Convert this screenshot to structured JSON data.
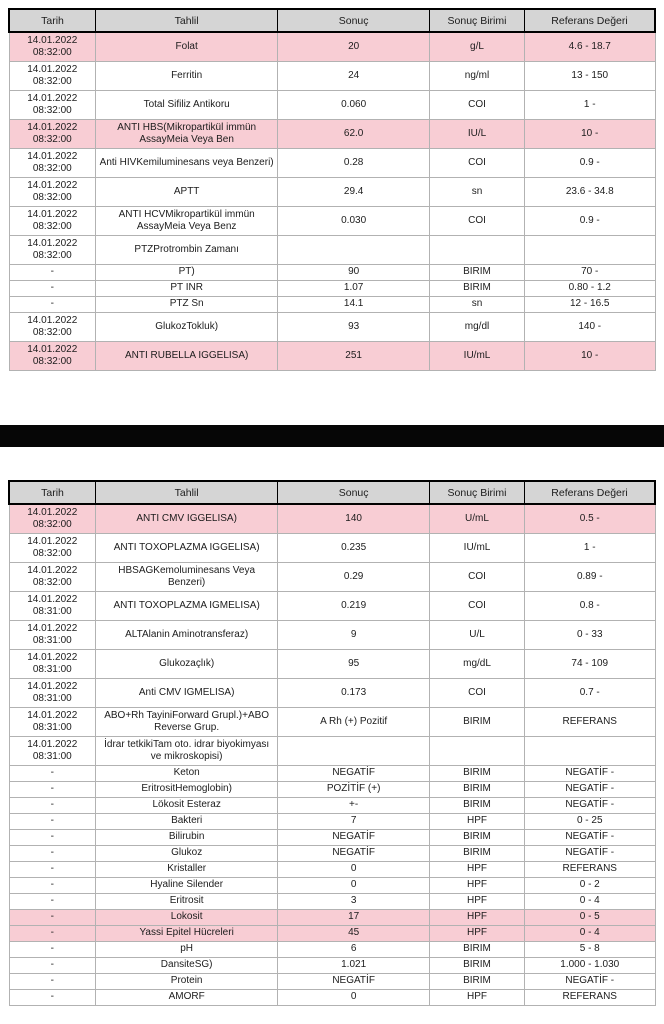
{
  "colors": {
    "highlight_pink": "#f8cdd4",
    "header_gray": "#d5d5d5",
    "redaction_black": "#060606"
  },
  "columns": {
    "date": "Tarih",
    "test": "Tahlil",
    "result": "Sonuç",
    "unit": "Sonuç Birimi",
    "ref": "Referans Değeri"
  },
  "table1": {
    "rows": [
      {
        "date": "14.01.2022",
        "time": "08:32:00",
        "test": "Folat",
        "result": "20",
        "unit": "g/L",
        "ref": "4.6 - 18.7",
        "highlight": true
      },
      {
        "date": "14.01.2022",
        "time": "08:32:00",
        "test": "Ferritin",
        "result": "24",
        "unit": "ng/ml",
        "ref": "13 - 150",
        "highlight": false
      },
      {
        "date": "14.01.2022",
        "time": "08:32:00",
        "test": "Total Sifiliz Antikoru",
        "result": "0.060",
        "unit": "COI",
        "ref": "1 -",
        "highlight": false
      },
      {
        "date": "14.01.2022",
        "time": "08:32:00",
        "test": "ANTI HBS(Mikropartikül immün AssayMeia Veya Ben",
        "result": "62.0",
        "unit": "IU/L",
        "ref": "10 -",
        "highlight": true
      },
      {
        "date": "14.01.2022",
        "time": "08:32:00",
        "test": "Anti HIVKemiluminesans veya Benzeri)",
        "result": "0.28",
        "unit": "COI",
        "ref": "0.9 -",
        "highlight": false
      },
      {
        "date": "14.01.2022",
        "time": "08:32:00",
        "test": "APTT",
        "result": "29.4",
        "unit": "sn",
        "ref": "23.6 - 34.8",
        "highlight": false
      },
      {
        "date": "14.01.2022",
        "time": "08:32:00",
        "test": "ANTI HCVMikropartikül immün AssayMeia Veya Benz",
        "result": "0.030",
        "unit": "COI",
        "ref": "0.9 -",
        "highlight": false
      },
      {
        "date": "14.01.2022",
        "time": "08:32:00",
        "test": "PTZProtrombin Zamanı",
        "result": "",
        "unit": "",
        "ref": "",
        "highlight": false
      },
      {
        "date": "-",
        "time": "",
        "test": "PT)",
        "result": "90",
        "unit": "BIRIM",
        "ref": "70 -",
        "highlight": false
      },
      {
        "date": "-",
        "time": "",
        "test": "PT INR",
        "result": "1.07",
        "unit": "BIRIM",
        "ref": "0.80 - 1.2",
        "highlight": false
      },
      {
        "date": "-",
        "time": "",
        "test": "PTZ Sn",
        "result": "14.1",
        "unit": "sn",
        "ref": "12 - 16.5",
        "highlight": false
      },
      {
        "date": "14.01.2022",
        "time": "08:32:00",
        "test": "GlukozTokluk)",
        "result": "93",
        "unit": "mg/dl",
        "ref": "140 -",
        "highlight": false
      },
      {
        "date": "14.01.2022",
        "time": "08:32:00",
        "test": "ANTI RUBELLA IGGELISA)",
        "result": "251",
        "unit": "IU/mL",
        "ref": "10 -",
        "highlight": true
      }
    ]
  },
  "table2": {
    "rows": [
      {
        "date": "14.01.2022",
        "time": "08:32:00",
        "test": "ANTI CMV IGGELISA)",
        "result": "140",
        "unit": "U/mL",
        "ref": "0.5 -",
        "highlight": true
      },
      {
        "date": "14.01.2022",
        "time": "08:32:00",
        "test": "ANTI TOXOPLAZMA IGGELISA)",
        "result": "0.235",
        "unit": "IU/mL",
        "ref": "1 -",
        "highlight": false
      },
      {
        "date": "14.01.2022",
        "time": "08:32:00",
        "test": "HBSAGKemoluminesans Veya Benzeri)",
        "result": "0.29",
        "unit": "COI",
        "ref": "0.89 -",
        "highlight": false
      },
      {
        "date": "14.01.2022",
        "time": "08:31:00",
        "test": "ANTI TOXOPLAZMA IGMELISA)",
        "result": "0.219",
        "unit": "COI",
        "ref": "0.8 -",
        "highlight": false
      },
      {
        "date": "14.01.2022",
        "time": "08:31:00",
        "test": "ALTAlanin Aminotransferaz)",
        "result": "9",
        "unit": "U/L",
        "ref": "0 - 33",
        "highlight": false
      },
      {
        "date": "14.01.2022",
        "time": "08:31:00",
        "test": "Glukozaçlık)",
        "result": "95",
        "unit": "mg/dL",
        "ref": "74 - 109",
        "highlight": false
      },
      {
        "date": "14.01.2022",
        "time": "08:31:00",
        "test": "Anti CMV IGMELISA)",
        "result": "0.173",
        "unit": "COI",
        "ref": "0.7 -",
        "highlight": false
      },
      {
        "date": "14.01.2022",
        "time": "08:31:00",
        "test": "ABO+Rh TayiniForward Grupl.)+ABO Reverse Grup.",
        "result": "A Rh (+) Pozitif",
        "unit": "BIRIM",
        "ref": "REFERANS",
        "highlight": false
      },
      {
        "date": "14.01.2022",
        "time": "08:31:00",
        "test": "İdrar tetkikiTam oto. idrar biyokimyası ve mikroskopisi)",
        "result": "",
        "unit": "",
        "ref": "",
        "highlight": false
      },
      {
        "date": "-",
        "time": "",
        "test": "Keton",
        "result": "NEGATİF",
        "unit": "BIRIM",
        "ref": "NEGATİF -",
        "highlight": false
      },
      {
        "date": "-",
        "time": "",
        "test": "EritrositHemoglobin)",
        "result": "POZİTİF (+)",
        "unit": "BIRIM",
        "ref": "NEGATİF -",
        "highlight": false
      },
      {
        "date": "-",
        "time": "",
        "test": "Lökosit Esteraz",
        "result": "+-",
        "unit": "BIRIM",
        "ref": "NEGATİF -",
        "highlight": false
      },
      {
        "date": "-",
        "time": "",
        "test": "Bakteri",
        "result": "7",
        "unit": "HPF",
        "ref": "0 - 25",
        "highlight": false
      },
      {
        "date": "-",
        "time": "",
        "test": "Bilirubin",
        "result": "NEGATİF",
        "unit": "BIRIM",
        "ref": "NEGATİF -",
        "highlight": false
      },
      {
        "date": "-",
        "time": "",
        "test": "Glukoz",
        "result": "NEGATİF",
        "unit": "BIRIM",
        "ref": "NEGATİF -",
        "highlight": false
      },
      {
        "date": "-",
        "time": "",
        "test": "Kristaller",
        "result": "0",
        "unit": "HPF",
        "ref": "REFERANS",
        "highlight": false
      },
      {
        "date": "-",
        "time": "",
        "test": "Hyaline Silender",
        "result": "0",
        "unit": "HPF",
        "ref": "0 - 2",
        "highlight": false
      },
      {
        "date": "-",
        "time": "",
        "test": "Eritrosit",
        "result": "3",
        "unit": "HPF",
        "ref": "0 - 4",
        "highlight": false
      },
      {
        "date": "-",
        "time": "",
        "test": "Lokosit",
        "result": "17",
        "unit": "HPF",
        "ref": "0 - 5",
        "highlight": true
      },
      {
        "date": "-",
        "time": "",
        "test": "Yassi Epitel Hücreleri",
        "result": "45",
        "unit": "HPF",
        "ref": "0 - 4",
        "highlight": true
      },
      {
        "date": "-",
        "time": "",
        "test": "pH",
        "result": "6",
        "unit": "BIRIM",
        "ref": "5 - 8",
        "highlight": false
      },
      {
        "date": "-",
        "time": "",
        "test": "DansiteSG)",
        "result": "1.021",
        "unit": "BIRIM",
        "ref": "1.000 - 1.030",
        "highlight": false
      },
      {
        "date": "-",
        "time": "",
        "test": "Protein",
        "result": "NEGATİF",
        "unit": "BIRIM",
        "ref": "NEGATİF -",
        "highlight": false
      },
      {
        "date": "-",
        "time": "",
        "test": "AMORF",
        "result": "0",
        "unit": "HPF",
        "ref": "REFERANS",
        "highlight": false
      }
    ]
  }
}
